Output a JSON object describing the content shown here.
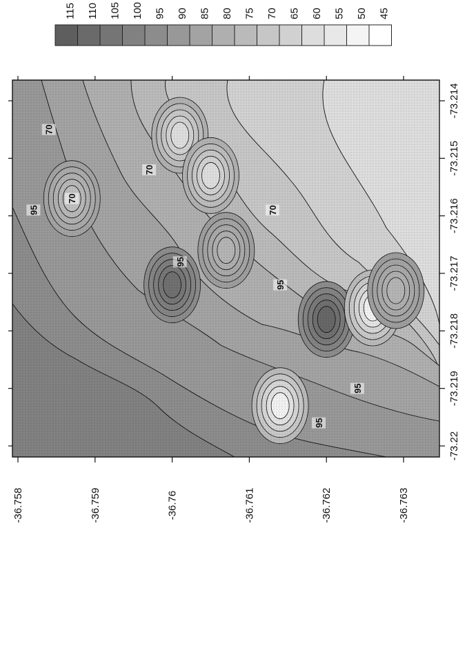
{
  "chart_data": {
    "type": "heatmap",
    "title": "",
    "xlabel": "",
    "ylabel": "",
    "orientation": "rotated-90-clockwise",
    "x_axis": {
      "ticks": [
        "-73.214",
        "-73.215",
        "-73.216",
        "-73.217",
        "-73.218",
        "-73.219",
        "-73.22"
      ],
      "range": [
        -73.214,
        -73.22
      ]
    },
    "y_axis": {
      "ticks": [
        "-36.758",
        "-36.759",
        "-36.76",
        "-36.761",
        "-36.762",
        "-36.763"
      ],
      "range": [
        -36.758,
        -36.763
      ]
    },
    "legend": {
      "position": "top",
      "levels": [
        "115",
        "110",
        "105",
        "100",
        "95",
        "90",
        "85",
        "80",
        "75",
        "70",
        "65",
        "60",
        "55",
        "50",
        "45"
      ]
    },
    "contour_labels": [
      {
        "value": "70",
        "x": -73.2145,
        "y": -36.7584
      },
      {
        "value": "70",
        "x": -73.2152,
        "y": -36.7597
      },
      {
        "value": "70",
        "x": -73.2157,
        "y": -36.7587
      },
      {
        "value": "70",
        "x": -73.2159,
        "y": -36.7613
      },
      {
        "value": "95",
        "x": -73.2159,
        "y": -36.7582
      },
      {
        "value": "95",
        "x": -73.2168,
        "y": -36.7601
      },
      {
        "value": "95",
        "x": -73.2172,
        "y": -36.7614
      },
      {
        "value": "95",
        "x": -73.219,
        "y": -36.7624
      },
      {
        "value": "95",
        "x": -73.2196,
        "y": -36.7619
      }
    ],
    "local_extrema": [
      {
        "x": -73.2178,
        "y": -36.762,
        "level": "115"
      },
      {
        "x": -73.2193,
        "y": -36.7614,
        "level": "45"
      },
      {
        "x": -73.2176,
        "y": -36.7626,
        "level": "45"
      },
      {
        "x": -73.2173,
        "y": -36.7629,
        "level": "75"
      },
      {
        "x": -73.2157,
        "y": -36.7587,
        "level": "70"
      },
      {
        "x": -73.2146,
        "y": -36.7601,
        "level": "55"
      },
      {
        "x": -73.2153,
        "y": -36.7605,
        "level": "55"
      },
      {
        "x": -73.2172,
        "y": -36.76,
        "level": "110"
      },
      {
        "x": -73.2166,
        "y": -36.7607,
        "level": "75"
      }
    ],
    "colors": {
      "low": "#ffffff",
      "high": "#5e5e5e",
      "contour": "#111111"
    }
  }
}
